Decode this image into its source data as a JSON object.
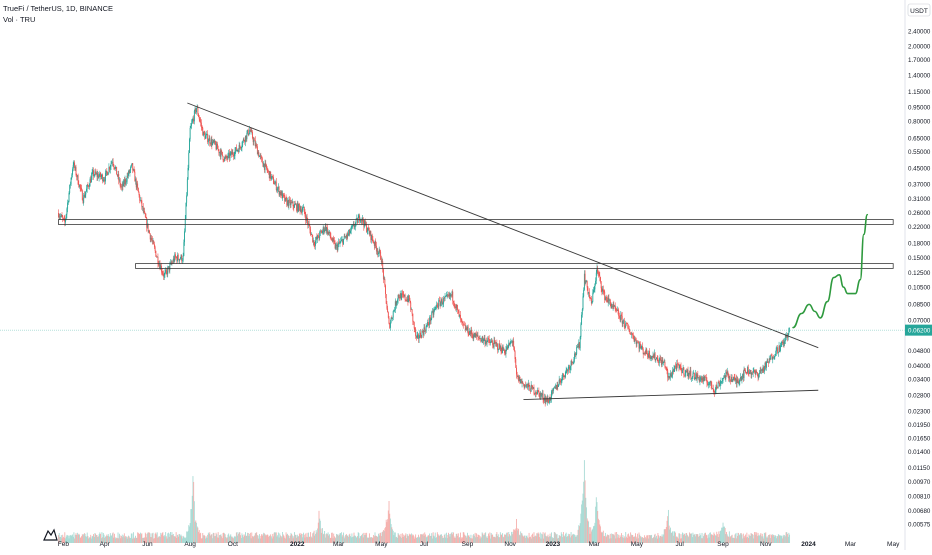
{
  "legend": {
    "symbol_line": "TrueFi / TetherUS, 1D, BINANCE",
    "volume_line": "Vol · TRU"
  },
  "price_axis": {
    "currency": "USDT",
    "current_price": "0.06200"
  },
  "colors": {
    "up": "#26a69a",
    "down": "#ef5350",
    "trendline": "#3a3a3a",
    "projection": "#2e9a3e",
    "price_line": "#6ec2b8",
    "price_tag": "#26a69a"
  },
  "logo": "tradingview-logo",
  "chart_data": {
    "type": "candlestick",
    "y_scale": "log",
    "ylim": [
      0.0055,
      3.2
    ],
    "xlim": [
      "2021-01-20",
      "2024-05-15"
    ],
    "y_ticks": [
      "2.40000",
      "2.00000",
      "1.70000",
      "1.40000",
      "1.15000",
      "0.95000",
      "0.80000",
      "0.65000",
      "0.55000",
      "0.45000",
      "0.37000",
      "0.31000",
      "0.26000",
      "0.22000",
      "0.18000",
      "0.15000",
      "0.12500",
      "0.10500",
      "0.08500",
      "0.07000",
      "0.05800",
      "0.04800",
      "0.04000",
      "0.03400",
      "0.02800",
      "0.02300",
      "0.01950",
      "0.01650",
      "0.01400",
      "0.01150",
      "0.00970",
      "0.00810",
      "0.00680",
      "0.00575"
    ],
    "x_ticks": [
      {
        "label": "Feb",
        "date": "2021-02-01"
      },
      {
        "label": "Apr",
        "date": "2021-04-01"
      },
      {
        "label": "Jun",
        "date": "2021-06-01"
      },
      {
        "label": "Aug",
        "date": "2021-08-01"
      },
      {
        "label": "Oct",
        "date": "2021-10-01"
      },
      {
        "label": "2022",
        "date": "2022-01-01"
      },
      {
        "label": "Mar",
        "date": "2022-03-01"
      },
      {
        "label": "May",
        "date": "2022-05-01"
      },
      {
        "label": "Jul",
        "date": "2022-07-01"
      },
      {
        "label": "Sep",
        "date": "2022-09-01"
      },
      {
        "label": "Nov",
        "date": "2022-11-01"
      },
      {
        "label": "2023",
        "date": "2023-01-01"
      },
      {
        "label": "Mar",
        "date": "2023-03-01"
      },
      {
        "label": "May",
        "date": "2023-05-01"
      },
      {
        "label": "Jul",
        "date": "2023-07-01"
      },
      {
        "label": "Sep",
        "date": "2023-09-01"
      },
      {
        "label": "Nov",
        "date": "2023-11-01"
      },
      {
        "label": "2024",
        "date": "2024-01-01"
      },
      {
        "label": "Mar",
        "date": "2024-03-01"
      },
      {
        "label": "May",
        "date": "2024-05-01"
      }
    ],
    "price_path": [
      [
        "2021-01-25",
        0.26
      ],
      [
        "2021-02-03",
        0.23
      ],
      [
        "2021-02-15",
        0.48
      ],
      [
        "2021-03-01",
        0.31
      ],
      [
        "2021-03-15",
        0.42
      ],
      [
        "2021-04-01",
        0.4
      ],
      [
        "2021-04-12",
        0.5
      ],
      [
        "2021-04-25",
        0.35
      ],
      [
        "2021-05-10",
        0.46
      ],
      [
        "2021-05-20",
        0.32
      ],
      [
        "2021-06-01",
        0.22
      ],
      [
        "2021-06-15",
        0.15
      ],
      [
        "2021-06-25",
        0.12
      ],
      [
        "2021-07-10",
        0.15
      ],
      [
        "2021-07-22",
        0.15
      ],
      [
        "2021-08-01",
        0.72
      ],
      [
        "2021-08-10",
        0.95
      ],
      [
        "2021-08-20",
        0.68
      ],
      [
        "2021-09-05",
        0.6
      ],
      [
        "2021-09-20",
        0.5
      ],
      [
        "2021-10-10",
        0.58
      ],
      [
        "2021-10-25",
        0.72
      ],
      [
        "2021-11-10",
        0.5
      ],
      [
        "2021-11-25",
        0.4
      ],
      [
        "2021-12-15",
        0.3
      ],
      [
        "2022-01-10",
        0.27
      ],
      [
        "2022-01-25",
        0.18
      ],
      [
        "2022-02-10",
        0.22
      ],
      [
        "2022-02-25",
        0.17
      ],
      [
        "2022-03-15",
        0.2
      ],
      [
        "2022-04-01",
        0.25
      ],
      [
        "2022-04-15",
        0.2
      ],
      [
        "2022-05-01",
        0.15
      ],
      [
        "2022-05-12",
        0.065
      ],
      [
        "2022-05-25",
        0.095
      ],
      [
        "2022-06-10",
        0.09
      ],
      [
        "2022-06-20",
        0.055
      ],
      [
        "2022-07-05",
        0.065
      ],
      [
        "2022-07-20",
        0.085
      ],
      [
        "2022-08-10",
        0.095
      ],
      [
        "2022-08-25",
        0.065
      ],
      [
        "2022-09-10",
        0.058
      ],
      [
        "2022-09-25",
        0.055
      ],
      [
        "2022-10-10",
        0.052
      ],
      [
        "2022-10-25",
        0.048
      ],
      [
        "2022-11-05",
        0.055
      ],
      [
        "2022-11-10",
        0.035
      ],
      [
        "2022-11-20",
        0.032
      ],
      [
        "2022-12-10",
        0.029
      ],
      [
        "2022-12-25",
        0.026
      ],
      [
        "2023-01-10",
        0.033
      ],
      [
        "2023-01-25",
        0.04
      ],
      [
        "2023-02-08",
        0.052
      ],
      [
        "2023-02-15",
        0.12
      ],
      [
        "2023-02-25",
        0.085
      ],
      [
        "2023-03-05",
        0.13
      ],
      [
        "2023-03-15",
        0.095
      ],
      [
        "2023-03-25",
        0.085
      ],
      [
        "2023-04-10",
        0.07
      ],
      [
        "2023-04-25",
        0.058
      ],
      [
        "2023-05-10",
        0.048
      ],
      [
        "2023-05-25",
        0.045
      ],
      [
        "2023-06-10",
        0.041
      ],
      [
        "2023-06-15",
        0.034
      ],
      [
        "2023-06-25",
        0.04
      ],
      [
        "2023-07-10",
        0.037
      ],
      [
        "2023-07-25",
        0.035
      ],
      [
        "2023-08-10",
        0.033
      ],
      [
        "2023-08-20",
        0.03
      ],
      [
        "2023-09-05",
        0.036
      ],
      [
        "2023-09-20",
        0.033
      ],
      [
        "2023-10-05",
        0.038
      ],
      [
        "2023-10-20",
        0.036
      ],
      [
        "2023-11-01",
        0.04
      ],
      [
        "2023-11-15",
        0.048
      ],
      [
        "2023-11-25",
        0.052
      ],
      [
        "2023-12-05",
        0.062
      ]
    ],
    "volume_spikes": [
      [
        "2021-08-05",
        0.7
      ],
      [
        "2022-02-01",
        0.25
      ],
      [
        "2022-05-12",
        0.45
      ],
      [
        "2022-11-10",
        0.2
      ],
      [
        "2023-02-15",
        1.0
      ],
      [
        "2023-03-05",
        0.55
      ],
      [
        "2023-06-15",
        0.25
      ],
      [
        "2023-09-01",
        0.15
      ]
    ],
    "annotations": {
      "descending_trendline": [
        [
          "2021-07-28",
          1.0
        ],
        [
          "2024-01-15",
          0.05
        ]
      ],
      "support_line": [
        [
          "2022-11-20",
          0.0265
        ],
        [
          "2024-01-15",
          0.0297
        ]
      ],
      "resistance_box_upper": {
        "from": "2021-01-25",
        "to": "2024-05-01",
        "high": 0.24,
        "low": 0.226
      },
      "resistance_box_lower": {
        "from": "2021-05-15",
        "to": "2024-05-01",
        "high": 0.14,
        "low": 0.132
      },
      "projection_path": [
        [
          "2023-12-10",
          0.064
        ],
        [
          "2023-12-22",
          0.076
        ],
        [
          "2024-01-02",
          0.085
        ],
        [
          "2024-01-10",
          0.078
        ],
        [
          "2024-01-18",
          0.072
        ],
        [
          "2024-01-28",
          0.088
        ],
        [
          "2024-02-06",
          0.118
        ],
        [
          "2024-02-14",
          0.122
        ],
        [
          "2024-02-20",
          0.105
        ],
        [
          "2024-02-26",
          0.097
        ],
        [
          "2024-03-08",
          0.097
        ],
        [
          "2024-03-15",
          0.115
        ],
        [
          "2024-03-20",
          0.2
        ],
        [
          "2024-03-25",
          0.255
        ]
      ]
    }
  }
}
